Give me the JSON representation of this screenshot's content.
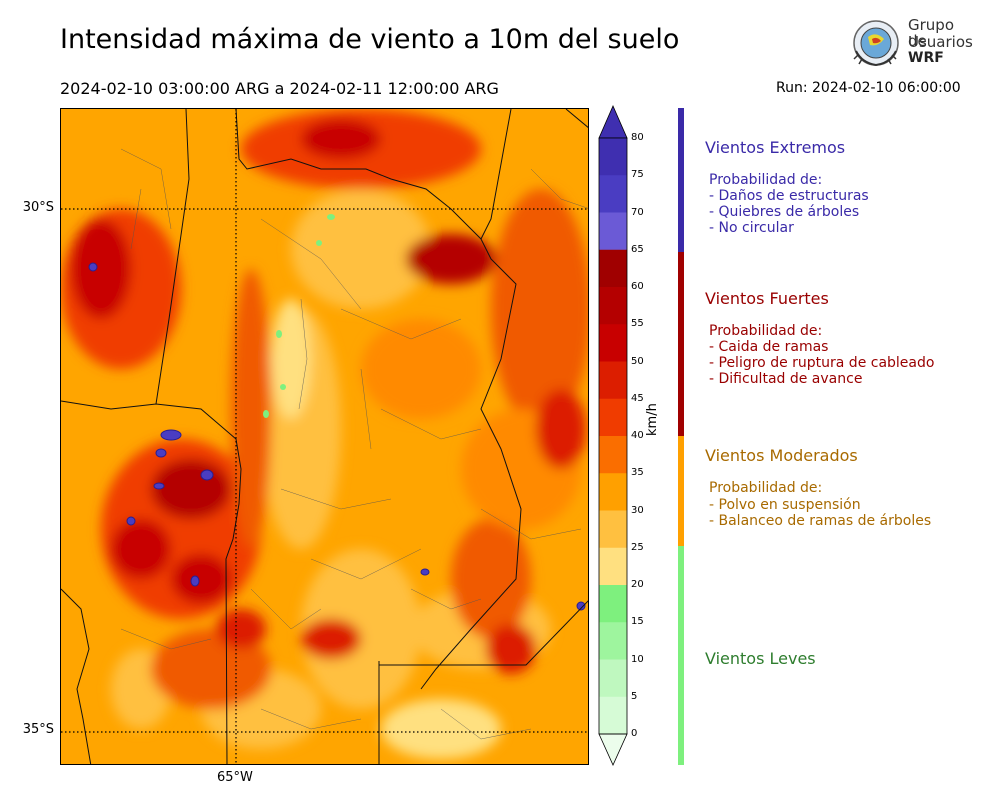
{
  "title": "Intensidad máxima de viento a 10m del suelo",
  "period": "2024-02-10 03:00:00 ARG  a  2024-02-11 12:00:00 ARG",
  "run": "Run: 2024-02-10 06:00:00",
  "logo": {
    "line1": "Grupo de",
    "line2": "Usuarios",
    "line3": "WRF"
  },
  "map": {
    "lat_labels": [
      "30°S",
      "35°S"
    ],
    "lon_labels": [
      "65°W"
    ]
  },
  "colorbar": {
    "unit": "km/h",
    "ticks": [
      "80",
      "75",
      "70",
      "65",
      "60",
      "55",
      "50",
      "45",
      "40",
      "35",
      "30",
      "25",
      "20",
      "15",
      "10",
      "5",
      "0"
    ],
    "colors": [
      "#3f2fb0",
      "#4a3dc2",
      "#6b5ad6",
      "#a00000",
      "#b40000",
      "#c80000",
      "#dc1e00",
      "#f03c00",
      "#fa6e00",
      "#ffa000",
      "#ffc040",
      "#ffe080",
      "#7ef07e",
      "#9ef59e",
      "#bff8bf",
      "#d6fbd6",
      "#ecfdec"
    ]
  },
  "categories": [
    {
      "title": "Vientos Extremos",
      "color": "#3a2aa8",
      "heading": "Probabilidad de:",
      "lines": [
        "- Daños de estructuras",
        "- Quiebres de árboles",
        "- No circular"
      ]
    },
    {
      "title": "Vientos Fuertes",
      "color": "#990000",
      "heading": "Probabilidad de:",
      "lines": [
        "- Caida de ramas",
        "- Peligro de ruptura de cableado",
        "- Dificultad de avance"
      ]
    },
    {
      "title": "Vientos Moderados",
      "color": "#a86a00",
      "heading": "Probabilidad de:",
      "lines": [
        "- Polvo en suspensión",
        "- Balanceo de ramas de árboles"
      ]
    },
    {
      "title": "Vientos Leves",
      "color": "#2e7d2e"
    }
  ]
}
